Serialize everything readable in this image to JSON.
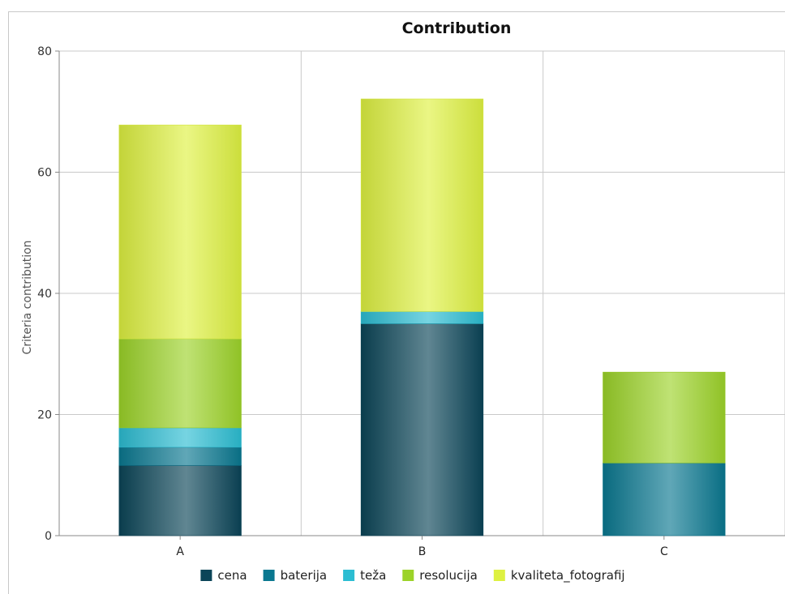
{
  "chart_data": {
    "type": "bar",
    "stacked": true,
    "title": "Contribution",
    "xlabel": "",
    "ylabel": "Criteria contribution",
    "ylim": [
      0,
      80
    ],
    "yticks": [
      0,
      20,
      40,
      60,
      80
    ],
    "grid": true,
    "legend_position": "bottom",
    "categories": [
      "A",
      "B",
      "C"
    ],
    "series": [
      {
        "name": "cena",
        "color": "#0b4558",
        "values": [
          11.6,
          35.0,
          0
        ]
      },
      {
        "name": "baterija",
        "color": "#0a7890",
        "values": [
          3.0,
          0,
          12.0
        ]
      },
      {
        "name": "teža",
        "color": "#2cbdd2",
        "values": [
          3.2,
          2.0,
          0
        ]
      },
      {
        "name": "resolucija",
        "color": "#9cd329",
        "values": [
          14.7,
          0,
          15.0
        ]
      },
      {
        "name": "kvaliteta_fotografij",
        "color": "#def141",
        "values": [
          35.3,
          35.1,
          0
        ]
      }
    ]
  }
}
